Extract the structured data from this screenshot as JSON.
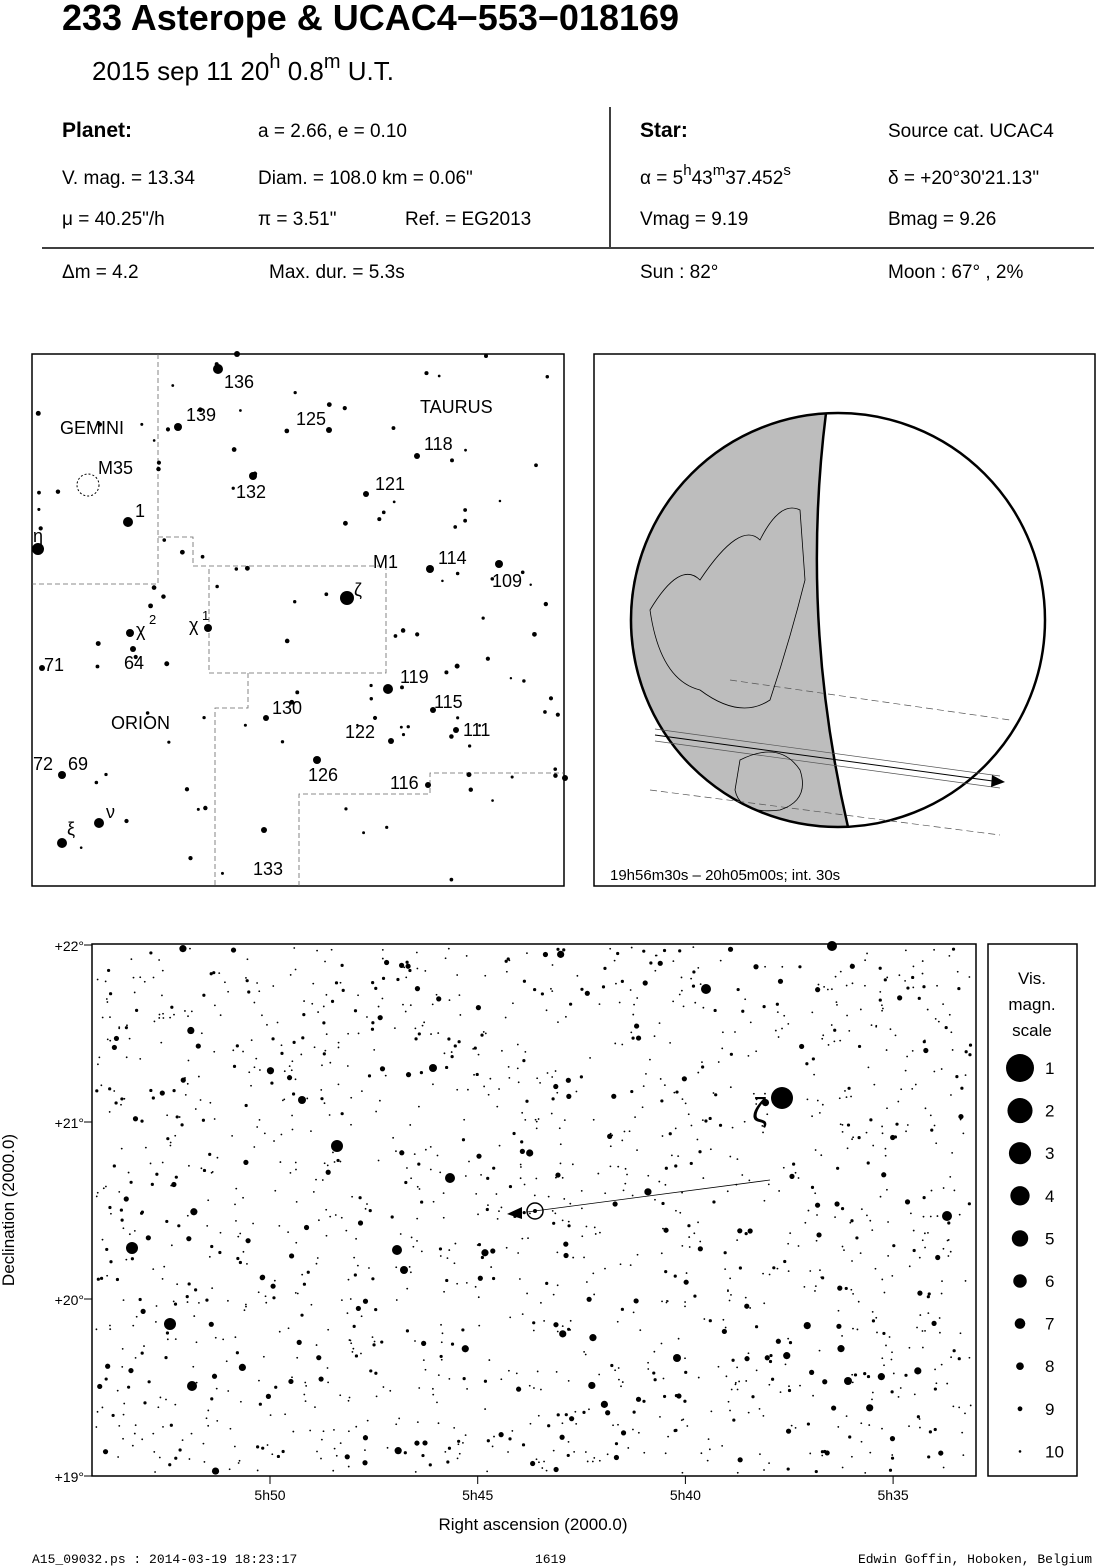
{
  "header": {
    "title": "233 Asterope  &  UCAC4−553−018169",
    "subtitle": [
      "2015 sep 11  20",
      "h",
      " 0.8",
      "m",
      " U.T."
    ]
  },
  "planet": {
    "heading": "Planet:",
    "orbit": "a = 2.66, e = 0.10",
    "vmag": "V. mag. = 13.34",
    "diam": "Diam. = 108.0 km = 0.06\"",
    "motion": "μ =  40.25\"/h",
    "parallax": "π =  3.51\"",
    "ref": "Ref. = EG2013",
    "delta_mag": "Δm = 4.2",
    "max_dur": "Max. dur. = 5.3s"
  },
  "star": {
    "heading": "Star:",
    "source": "Source cat.  UCAC4",
    "ra": [
      "α =  5",
      "h",
      "43",
      "m",
      "37.452",
      "s"
    ],
    "dec": "δ = +20°30'21.13\"",
    "vmag": "Vmag =  9.19",
    "bmag": "Bmag =  9.26",
    "sun": "Sun :  82°",
    "moon": "Moon :  67° ,  2%"
  },
  "finder_map": {
    "labels": [
      "136",
      "139",
      "125",
      "TAURUS",
      "GEMINI",
      "118",
      "M35",
      "121",
      "132",
      "1",
      "η",
      "M1",
      "114",
      "109",
      "ζ",
      "χ",
      "1",
      "χ",
      "2",
      "64",
      "71",
      "119",
      "115",
      "ORION",
      "130",
      "122",
      "111",
      "72",
      "69",
      "126",
      "116",
      "ν",
      "ξ",
      "133"
    ]
  },
  "globe": {
    "caption": "19h56m30s – 20h05m00s; int. 30s"
  },
  "star_chart": {
    "dec_ticks": [
      "+22°",
      "+21°",
      "+20°",
      "+19°"
    ],
    "ra_ticks": [
      "5h50",
      "5h45",
      "5h40",
      "5h35"
    ],
    "x_label": "Right ascension (2000.0)",
    "y_label": "Declination (2000.0)",
    "zeta": "ζ",
    "legend": {
      "title": [
        "Vis.",
        "magn.",
        "scale"
      ],
      "magnitudes": [
        1,
        2,
        3,
        4,
        5,
        6,
        7,
        8,
        9,
        10
      ]
    }
  },
  "footer": {
    "file": "A15_09032.ps : 2014-03-19 18:23:17",
    "page": "1619",
    "author": "Edwin Goffin, Hoboken, Belgium"
  }
}
